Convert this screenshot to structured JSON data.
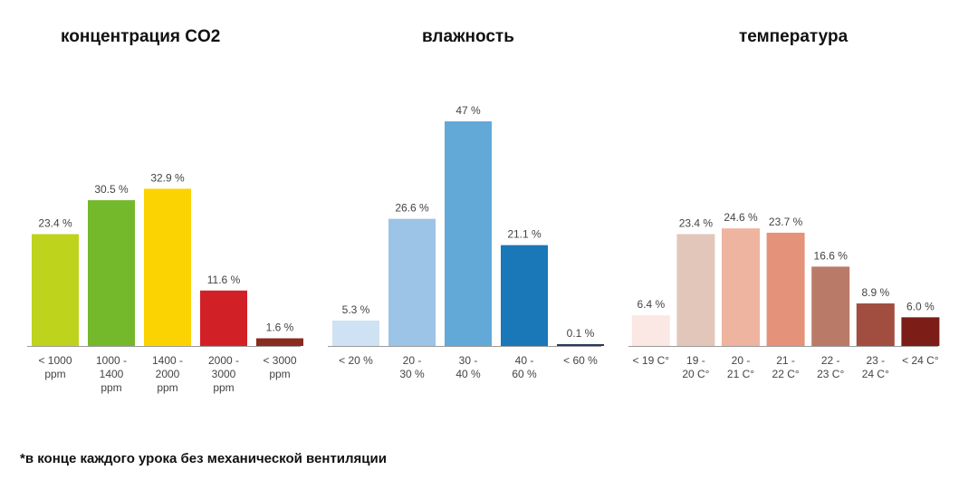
{
  "chart_data": [
    {
      "type": "bar",
      "title": "концентрация CO2",
      "categories": [
        [
          "< 1000",
          "ppm"
        ],
        [
          "1000 -",
          "1400",
          "ppm"
        ],
        [
          "1400 -",
          "2000",
          "ppm"
        ],
        [
          "2000 -",
          "3000",
          "ppm"
        ],
        [
          "< 3000",
          "ppm"
        ]
      ],
      "values": [
        23.4,
        30.5,
        32.9,
        11.6,
        1.6
      ],
      "value_labels": [
        "23.4 %",
        "30.5 %",
        "32.9 %",
        "11.6 %",
        "1.6 %"
      ],
      "colors": [
        "#bed31c",
        "#74b82c",
        "#fbd303",
        "#d12126",
        "#8a2a20"
      ],
      "ylim": [
        0,
        47
      ]
    },
    {
      "type": "bar",
      "title": "влажность",
      "categories": [
        [
          "< 20 %"
        ],
        [
          "20 -",
          "30 %"
        ],
        [
          "30 -",
          "40 %"
        ],
        [
          "40 -",
          "60 %"
        ],
        [
          "< 60 %"
        ]
      ],
      "values": [
        5.3,
        26.6,
        47,
        21.1,
        0.1
      ],
      "value_labels": [
        "5.3 %",
        "26.6 %",
        "47 %",
        "21.1 %",
        "0.1 %"
      ],
      "colors": [
        "#cfe2f3",
        "#9bc4e6",
        "#62a9d8",
        "#1a77b8",
        "#243a5c"
      ],
      "ylim": [
        0,
        47
      ]
    },
    {
      "type": "bar",
      "title": "температура",
      "categories": [
        [
          "< 19 C°"
        ],
        [
          "19 -",
          "20 C°"
        ],
        [
          "20 -",
          "21 C°"
        ],
        [
          "21 -",
          "22 C°"
        ],
        [
          "22 -",
          "23 C°"
        ],
        [
          "23 -",
          "24 C°"
        ],
        [
          "< 24 C°"
        ]
      ],
      "values": [
        6.4,
        23.4,
        24.6,
        23.7,
        16.6,
        8.9,
        6.0
      ],
      "value_labels": [
        "6.4 %",
        "23.4 %",
        "24.6 %",
        "23.7 %",
        "16.6 %",
        "8.9 %",
        "6.0 %"
      ],
      "colors": [
        "#fbe7e3",
        "#e3c6ba",
        "#efb49f",
        "#e5927b",
        "#b97b68",
        "#a14d3f",
        "#7c1d17"
      ],
      "ylim": [
        0,
        47
      ]
    }
  ],
  "footnote": "*в конце каждого урока без механической вентиляции"
}
